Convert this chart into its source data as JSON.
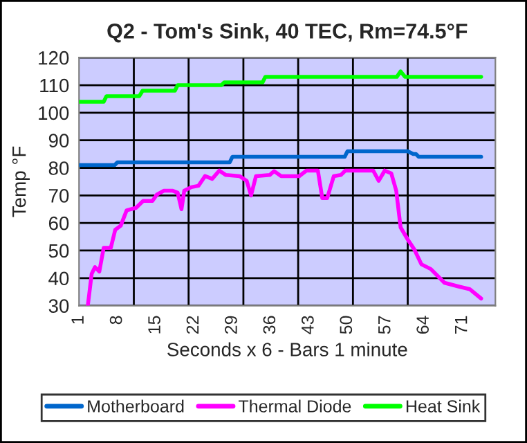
{
  "chart_data": {
    "type": "line",
    "title": "Q2 - Tom's Sink, 40 TEC, Rm=74.5°F",
    "xlabel": "Seconds x 6 - Bars 1 minute",
    "ylabel": "Temp °F",
    "xlim": [
      1,
      77
    ],
    "xticks": [
      1,
      8,
      15,
      22,
      29,
      36,
      43,
      50,
      57,
      64,
      71,
      {
        "value": 11,
        "label": null
      },
      {
        "value": 21,
        "label": null
      },
      {
        "value": 31,
        "label": null
      },
      {
        "value": 41,
        "label": null
      },
      {
        "value": 51,
        "label": null
      },
      {
        "value": 61,
        "label": null
      }
    ],
    "ylim": [
      30,
      120
    ],
    "yticks": [
      30,
      40,
      50,
      60,
      70,
      80,
      90,
      100,
      110,
      120
    ],
    "grid": true,
    "legend": "bottom",
    "line_style": "solid",
    "marker": "none",
    "series": [
      {
        "name": "Motherboard",
        "color": "#0066cc",
        "x": [
          1,
          7.5,
          8,
          28.5,
          29,
          49.5,
          50,
          61,
          62,
          62.5,
          63,
          74.4
        ],
        "values": [
          81,
          81,
          82,
          82,
          84,
          84,
          86,
          86,
          85,
          85,
          84,
          84
        ]
      },
      {
        "name": "Thermal Diode",
        "color": "#ff00ff",
        "x": [
          2.6,
          3.3,
          3.9,
          4.7,
          5.5,
          6.8,
          7.6,
          8.6,
          9.7,
          11.4,
          12.7,
          14.4,
          15.2,
          16.5,
          18.1,
          19,
          19.7,
          20.2,
          21.5,
          22.8,
          24,
          25.3,
          26.6,
          27.8,
          30.3,
          31.6,
          32.4,
          33.3,
          35.8,
          36.6,
          37.9,
          41.2,
          42.5,
          44.6,
          45.4,
          46.3,
          47.5,
          48.8,
          49.6,
          54.7,
          55.7,
          56.8,
          58,
          58.9,
          59.7,
          61,
          62.2,
          63.5,
          65.2,
          67.7,
          70.2,
          72.3,
          74.4
        ],
        "values": [
          30,
          41.5,
          44,
          42.4,
          51,
          51,
          57.5,
          59,
          64.6,
          65.5,
          68,
          68,
          70.3,
          71.7,
          71.7,
          71,
          65,
          71.7,
          73,
          73.5,
          77,
          76,
          79,
          77.4,
          77,
          75.3,
          70,
          77,
          77.4,
          78.8,
          77,
          77,
          79,
          79,
          69,
          69,
          77,
          77.4,
          79,
          79,
          75.3,
          79,
          78,
          71.7,
          58.4,
          54,
          50.4,
          45,
          43.3,
          38.3,
          37,
          36,
          32.6
        ]
      },
      {
        "name": "Heat Sink",
        "color": "#00ff00",
        "x": [
          1,
          5.5,
          6,
          12,
          12.6,
          18.5,
          19,
          27,
          27.5,
          34.5,
          35,
          59,
          59.7,
          60.5,
          74.4
        ],
        "values": [
          104,
          104,
          106,
          106,
          108,
          108,
          110,
          110,
          111,
          111,
          113,
          113,
          115,
          113,
          113
        ]
      }
    ]
  }
}
